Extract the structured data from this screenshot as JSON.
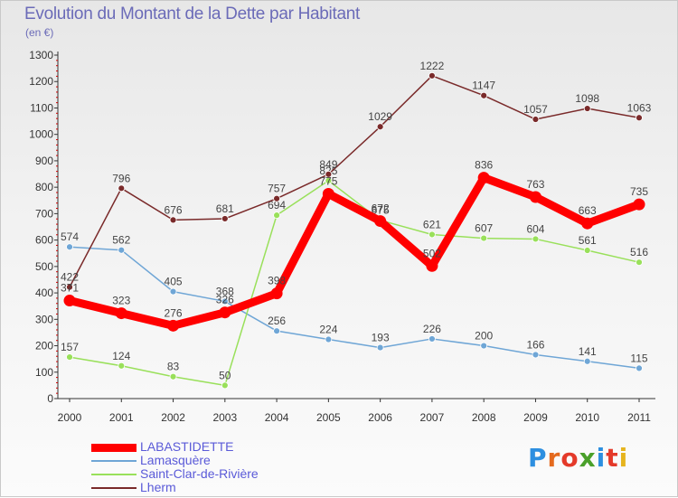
{
  "header": {
    "title": "Evolution du Montant de la Dette par Habitant",
    "unit": "(en €)"
  },
  "logo": {
    "text": "Proxiti",
    "colors": [
      "#2d8fe0",
      "#e46a1e",
      "#e43a2a",
      "#4aa02a",
      "#2d8fe0",
      "#e43a2a",
      "#e6b41e"
    ]
  },
  "chart_data": {
    "type": "line",
    "title": "Evolution du Montant de la Dette par Habitant",
    "ylabel": "(en €)",
    "xlabel": "",
    "x": [
      "2000",
      "2001",
      "2002",
      "2003",
      "2004",
      "2005",
      "2006",
      "2007",
      "2008",
      "2009",
      "2010",
      "2011"
    ],
    "ylim": [
      0,
      1300
    ],
    "yticks": [
      "0",
      "100",
      "200",
      "300",
      "400",
      "500",
      "600",
      "700",
      "800",
      "900",
      "1000",
      "1100",
      "1200",
      "1300"
    ],
    "grid": false,
    "legend_position": "bottom-left",
    "series": [
      {
        "name": "LABASTIDETTE",
        "color": "#ff0000",
        "values": [
          371,
          323,
          276,
          326,
          398,
          775,
          672,
          502,
          836,
          763,
          663,
          735
        ]
      },
      {
        "name": "Lamasquère",
        "color": "#6fa6d6",
        "values": [
          574,
          562,
          405,
          368,
          256,
          224,
          193,
          226,
          200,
          166,
          141,
          115
        ]
      },
      {
        "name": "Saint-Clar-de-Rivière",
        "color": "#99e05a",
        "values": [
          157,
          124,
          83,
          50,
          694,
          825,
          675,
          621,
          607,
          604,
          561,
          516
        ]
      },
      {
        "name": "Lherm",
        "color": "#7a2a2a",
        "values": [
          422,
          796,
          676,
          681,
          757,
          849,
          1029,
          1222,
          1147,
          1057,
          1098,
          1063
        ]
      }
    ]
  }
}
